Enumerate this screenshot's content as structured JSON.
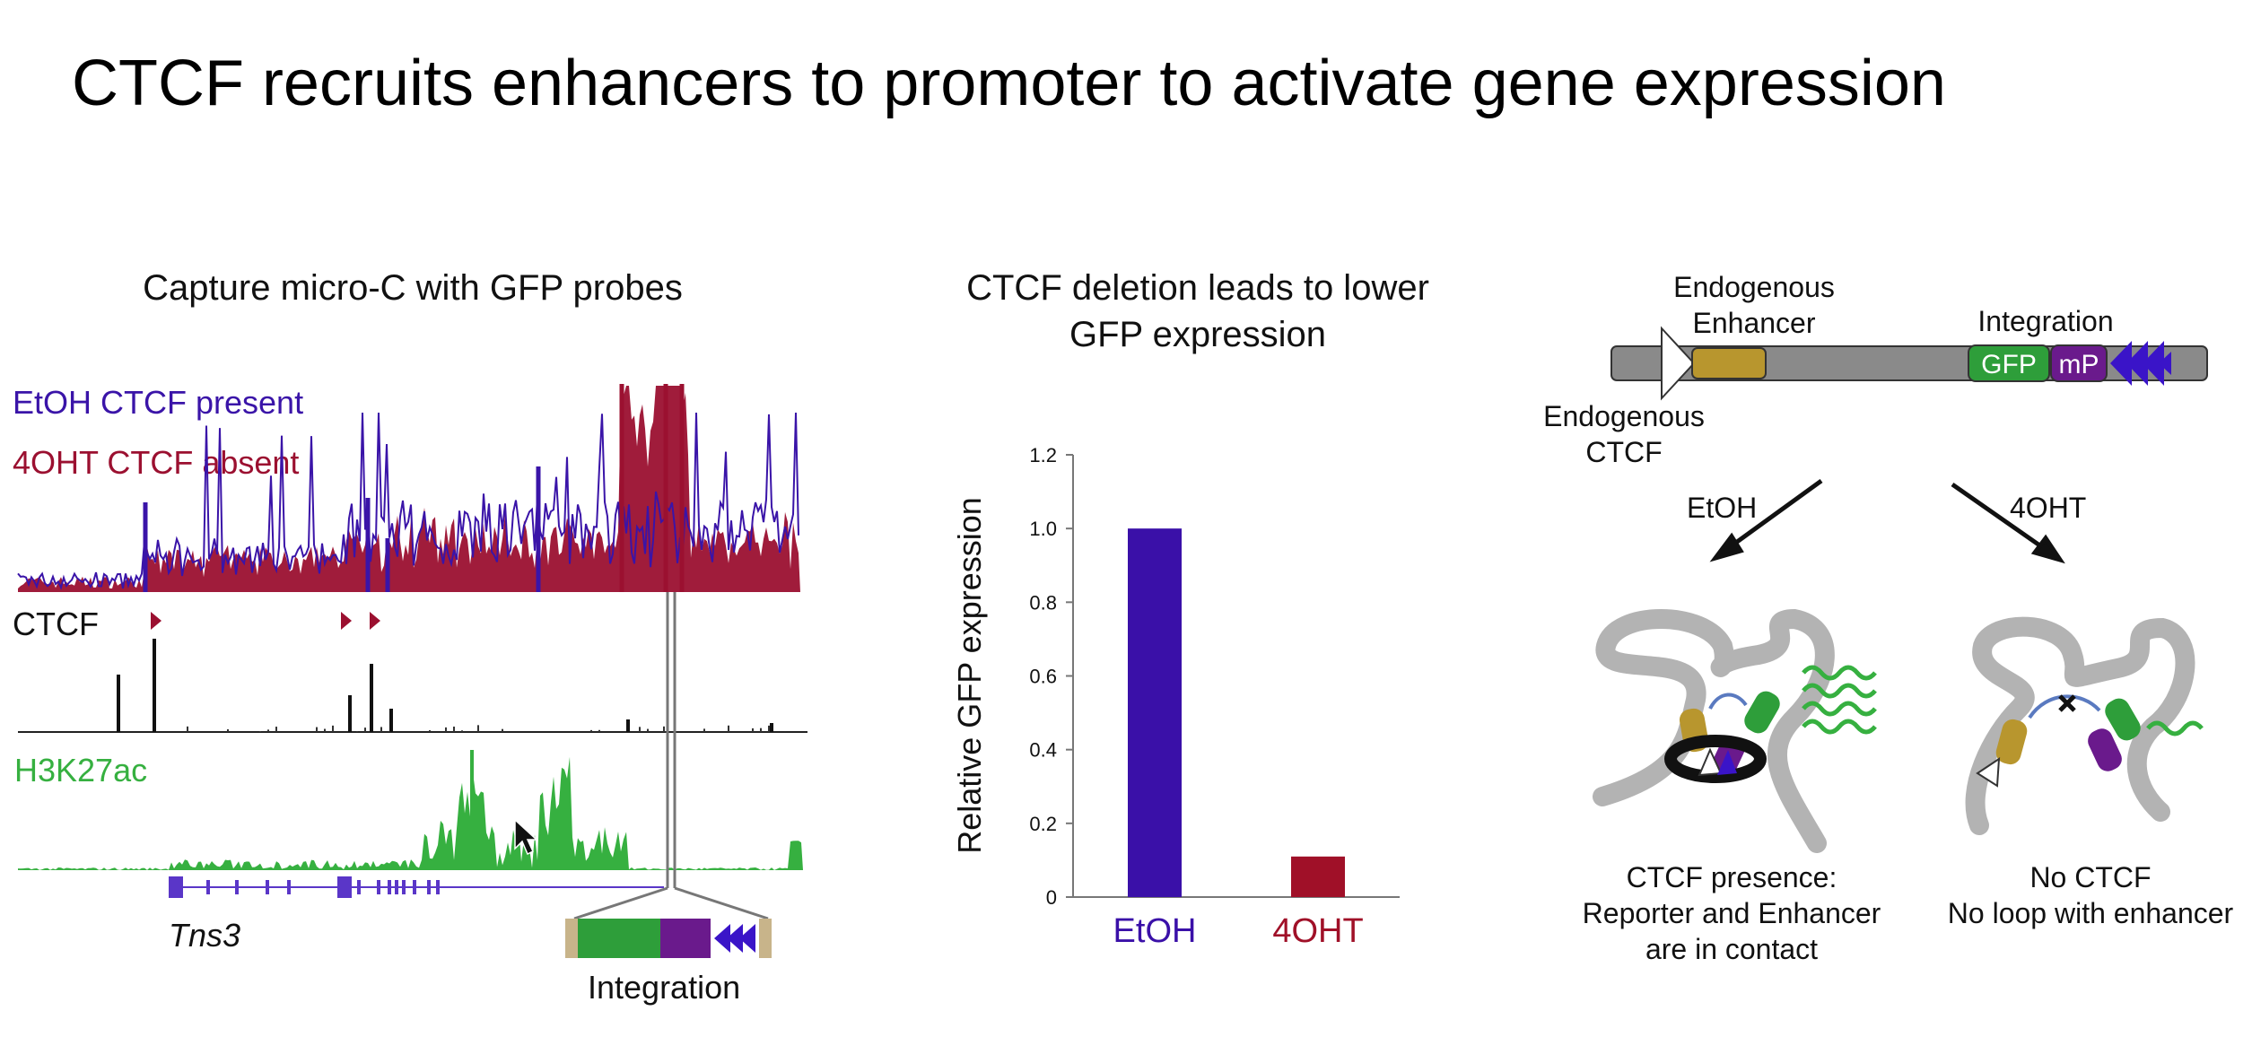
{
  "slide": {
    "title": "CTCF recruits enhancers to promoter to activate gene expression"
  },
  "panel_left": {
    "title": "Capture micro-C with GFP probes",
    "legend_etoh": "EtOH CTCF present",
    "legend_4oht": "4OHT CTCF absent",
    "track_ctcf": "CTCF",
    "track_h3k27ac": "H3K27ac",
    "gene": "Tns3",
    "integration_label": "Integration",
    "colors": {
      "etoh": "#3a14a8",
      "oht": "#9b1030",
      "h3k27ac": "#36b040",
      "gfp": "#2e9e3a",
      "mp": "#6a1a8c"
    }
  },
  "panel_middle": {
    "title_line1": "CTCF deletion leads to lower",
    "title_line2": "GFP expression"
  },
  "chart_data": {
    "type": "bar",
    "categories": [
      "EtOH",
      "4OHT"
    ],
    "values": [
      1.0,
      0.11
    ],
    "colors": [
      "#3a10a8",
      "#a01028"
    ],
    "ylabel": "Relative GFP expression",
    "xlabel": "",
    "ylim": [
      0,
      1.2
    ],
    "yticks": [
      "0",
      "0.2",
      "0.4",
      "0.6",
      "0.8",
      "1.0",
      "1.2"
    ],
    "grid": false
  },
  "panel_right": {
    "endo_enhancer_line1": "Endogenous",
    "endo_enhancer_line2": "Enhancer",
    "integration": "Integration",
    "gfp": "GFP",
    "mp": "mP",
    "endo_ctcf_line1": "Endogenous",
    "endo_ctcf_line2": "CTCF",
    "arrow_left": "EtOH",
    "arrow_right": "4OHT",
    "caption_left_1": "CTCF presence:",
    "caption_left_2": "Reporter and Enhancer",
    "caption_left_3": "are in contact",
    "caption_right_1": "No CTCF",
    "caption_right_2": "No loop with enhancer"
  }
}
